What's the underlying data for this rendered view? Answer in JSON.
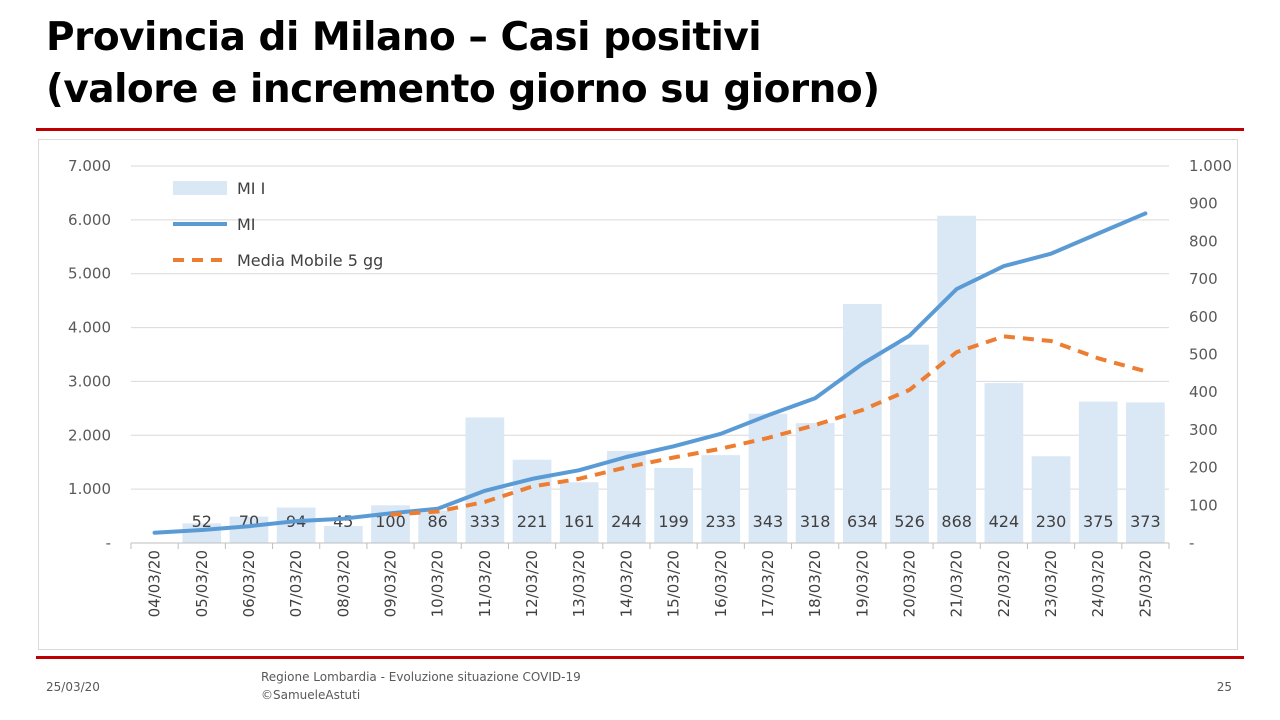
{
  "slide": {
    "title_line1": "Provincia di Milano – Casi positivi",
    "title_line2": "(valore e incremento giorno su giorno)",
    "footer_date": "25/03/20",
    "footer_source_line1": "Regione Lombardia - Evoluzione situazione COVID-19",
    "footer_source_line2": "©SamueleAstuti",
    "page_number": "25"
  },
  "chart_data": {
    "type": "bar+line",
    "categories": [
      "04/03/20",
      "05/03/20",
      "06/03/20",
      "07/03/20",
      "08/03/20",
      "09/03/20",
      "10/03/20",
      "11/03/20",
      "12/03/20",
      "13/03/20",
      "14/03/20",
      "15/03/20",
      "16/03/20",
      "17/03/20",
      "18/03/20",
      "19/03/20",
      "20/03/20",
      "21/03/20",
      "22/03/20",
      "23/03/20",
      "24/03/20",
      "25/03/20"
    ],
    "y_left": {
      "ylim": [
        0,
        7000
      ],
      "ticks": [
        0,
        1000,
        2000,
        3000,
        4000,
        5000,
        6000,
        7000
      ],
      "tick_labels": [
        "-",
        "1.000",
        "2.000",
        "3.000",
        "4.000",
        "5.000",
        "6.000",
        "7.000"
      ]
    },
    "y_right": {
      "ylim": [
        0,
        1000
      ],
      "ticks": [
        0,
        100,
        200,
        300,
        400,
        500,
        600,
        700,
        800,
        900,
        1000
      ],
      "tick_labels": [
        "-",
        "100",
        "200",
        "300",
        "400",
        "500",
        "600",
        "700",
        "800",
        "900",
        "1.000"
      ]
    },
    "series": [
      {
        "name": "MI I",
        "kind": "bar",
        "axis": "right",
        "color": "#dae7f5",
        "values": [
          null,
          52,
          70,
          94,
          45,
          100,
          86,
          333,
          221,
          161,
          244,
          199,
          233,
          343,
          318,
          634,
          526,
          868,
          424,
          230,
          375,
          373
        ],
        "data_labels": [
          "",
          "52",
          "70",
          "94",
          "45",
          "100",
          "86",
          "333",
          "221",
          "161",
          "244",
          "199",
          "233",
          "343",
          "318",
          "634",
          "526",
          "868",
          "424",
          "230",
          "375",
          "373"
        ]
      },
      {
        "name": "MI",
        "kind": "line",
        "axis": "left",
        "color": "#5b9bd5",
        "values": [
          190,
          242,
          312,
          406,
          451,
          551,
          637,
          970,
          1191,
          1352,
          1596,
          1795,
          2028,
          2371,
          2689,
          3323,
          3849,
          4717,
          5141,
          5371,
          5746,
          6119
        ]
      },
      {
        "name": "Media Mobile 5 gg",
        "kind": "line",
        "dash": true,
        "axis": "left",
        "color": "#ed7d31",
        "values": [
          null,
          null,
          null,
          null,
          null,
          527,
          585,
          763,
          1047,
          1192,
          1406,
          1587,
          1751,
          1951,
          2189,
          2469,
          2842,
          3544,
          3837,
          3751,
          3429,
          3189
        ]
      }
    ],
    "legend": "top-left",
    "grid": true
  }
}
